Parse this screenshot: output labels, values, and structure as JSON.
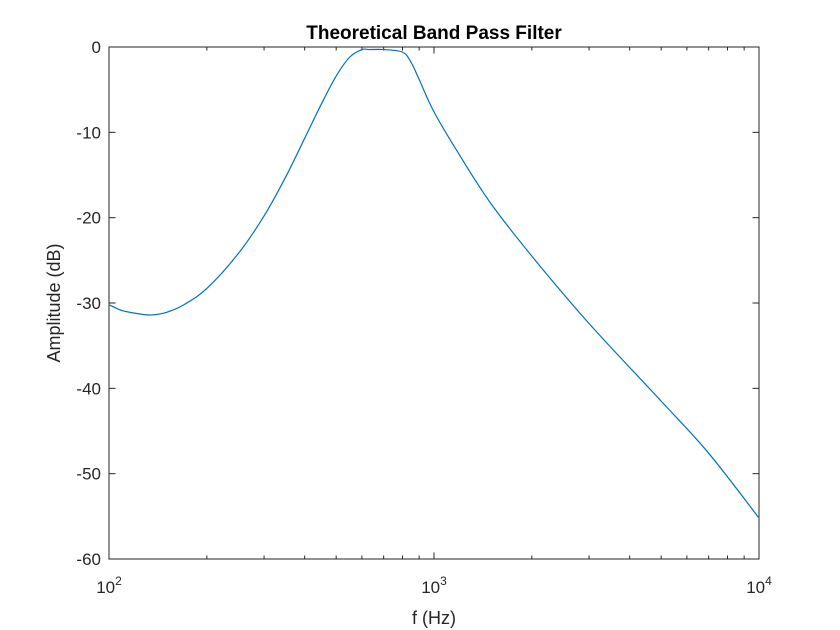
{
  "chart_data": {
    "type": "line",
    "title": "Theoretical Band Pass Filter",
    "xlabel": "f (Hz)",
    "ylabel": "Amplitude (dB)",
    "xscale": "log",
    "xlim": [
      100,
      10000
    ],
    "ylim": [
      -60,
      0
    ],
    "grid": false,
    "x_ticks": [
      {
        "value": 100,
        "base": "10",
        "exponent": "2"
      },
      {
        "value": 1000,
        "base": "10",
        "exponent": "3"
      },
      {
        "value": 10000,
        "base": "10",
        "exponent": "4"
      }
    ],
    "y_ticks": [
      {
        "value": 0,
        "label": "0"
      },
      {
        "value": -10,
        "label": "-10"
      },
      {
        "value": -20,
        "label": "-20"
      },
      {
        "value": -30,
        "label": "-30"
      },
      {
        "value": -40,
        "label": "-40"
      },
      {
        "value": -50,
        "label": "-50"
      },
      {
        "value": -60,
        "label": "-60"
      }
    ],
    "series": [
      {
        "color": "#0072BD",
        "x": [
          100,
          110,
          125,
          135,
          150,
          170,
          200,
          250,
          300,
          350,
          400,
          450,
          500,
          550,
          600,
          630,
          700,
          800,
          850,
          900,
          1000,
          1200,
          1500,
          2000,
          3000,
          5000,
          7000,
          10000
        ],
        "y": [
          -30.2,
          -30.9,
          -31.3,
          -31.4,
          -31.1,
          -30.2,
          -28.3,
          -24.2,
          -19.8,
          -15.2,
          -10.7,
          -6.7,
          -3.4,
          -1.2,
          -0.3,
          -0.3,
          -0.3,
          -0.6,
          -1.8,
          -3.8,
          -7.6,
          -12.7,
          -18.4,
          -24.5,
          -32.4,
          -41.5,
          -47.6,
          -55.2
        ]
      }
    ]
  }
}
